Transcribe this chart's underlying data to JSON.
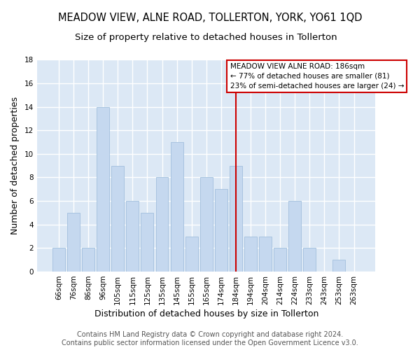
{
  "title": "MEADOW VIEW, ALNE ROAD, TOLLERTON, YORK, YO61 1QD",
  "subtitle": "Size of property relative to detached houses in Tollerton",
  "xlabel": "Distribution of detached houses by size in Tollerton",
  "ylabel": "Number of detached properties",
  "footer_lines": [
    "Contains HM Land Registry data © Crown copyright and database right 2024.",
    "Contains public sector information licensed under the Open Government Licence v3.0."
  ],
  "categories": [
    "66sqm",
    "76sqm",
    "86sqm",
    "96sqm",
    "105sqm",
    "115sqm",
    "125sqm",
    "135sqm",
    "145sqm",
    "155sqm",
    "165sqm",
    "174sqm",
    "184sqm",
    "194sqm",
    "204sqm",
    "214sqm",
    "224sqm",
    "233sqm",
    "243sqm",
    "253sqm",
    "263sqm"
  ],
  "values": [
    2,
    5,
    2,
    14,
    9,
    6,
    5,
    8,
    11,
    3,
    8,
    7,
    9,
    3,
    3,
    2,
    6,
    2,
    0,
    1,
    0
  ],
  "bar_color": "#c5d8ef",
  "bar_edge_color": "#a8c4e0",
  "reference_line_x_label": "184sqm",
  "reference_line_color": "#cc0000",
  "annotation_title": "MEADOW VIEW ALNE ROAD: 186sqm",
  "annotation_line1": "← 77% of detached houses are smaller (81)",
  "annotation_line2": "23% of semi-detached houses are larger (24) →",
  "ylim": [
    0,
    18
  ],
  "yticks": [
    0,
    2,
    4,
    6,
    8,
    10,
    12,
    14,
    16,
    18
  ],
  "plot_bg_color": "#dce8f5",
  "fig_bg_color": "#ffffff",
  "grid_color": "#ffffff",
  "title_fontsize": 10.5,
  "subtitle_fontsize": 9.5,
  "axis_label_fontsize": 9,
  "tick_fontsize": 7.5,
  "footer_fontsize": 7
}
